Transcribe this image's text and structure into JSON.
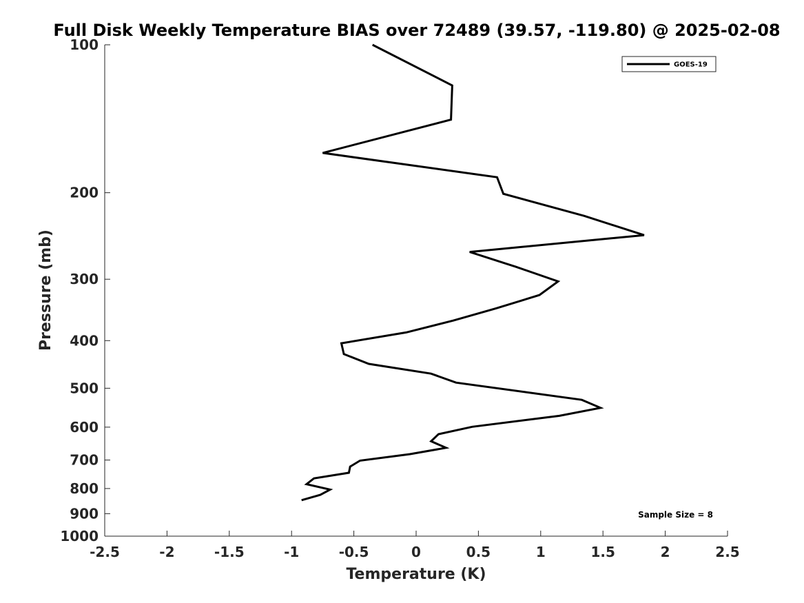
{
  "chart_data": {
    "type": "line",
    "title": "Full Disk Weekly Temperature BIAS over 72489 (39.57, -119.80) @ 2025-02-08",
    "xlabel": "Temperature (K)",
    "ylabel": "Pressure (mb)",
    "xlim": [
      -2.5,
      2.5
    ],
    "ylim": [
      100,
      1000
    ],
    "yscale": "log",
    "y_reversed": true,
    "xticks": [
      -2.5,
      -2,
      -1.5,
      -1,
      -0.5,
      0,
      0.5,
      1,
      1.5,
      2,
      2.5
    ],
    "xtick_labels": [
      "-2.5",
      "-2",
      "-1.5",
      "-1",
      "-0.5",
      "0",
      "0.5",
      "1",
      "1.5",
      "2",
      "2.5"
    ],
    "yticks": [
      100,
      200,
      300,
      400,
      500,
      600,
      700,
      800,
      900,
      1000
    ],
    "ytick_labels": [
      "100",
      "200",
      "300",
      "400",
      "500",
      "600",
      "700",
      "800",
      "900",
      "1000"
    ],
    "grid": false,
    "legend_position": "top-right",
    "series": [
      {
        "name": "GOES-19",
        "color": "#000000",
        "points": [
          {
            "x": -0.35,
            "y": 100
          },
          {
            "x": 0.29,
            "y": 121
          },
          {
            "x": 0.28,
            "y": 142
          },
          {
            "x": -0.75,
            "y": 166
          },
          {
            "x": 0.65,
            "y": 186
          },
          {
            "x": 0.7,
            "y": 201
          },
          {
            "x": 1.35,
            "y": 223
          },
          {
            "x": 1.83,
            "y": 244
          },
          {
            "x": 0.43,
            "y": 264
          },
          {
            "x": 0.8,
            "y": 283
          },
          {
            "x": 1.14,
            "y": 303
          },
          {
            "x": 0.99,
            "y": 323
          },
          {
            "x": 0.64,
            "y": 344
          },
          {
            "x": 0.3,
            "y": 364
          },
          {
            "x": -0.08,
            "y": 385
          },
          {
            "x": -0.6,
            "y": 405
          },
          {
            "x": -0.58,
            "y": 426
          },
          {
            "x": -0.38,
            "y": 446
          },
          {
            "x": 0.12,
            "y": 467
          },
          {
            "x": 0.32,
            "y": 487
          },
          {
            "x": 1.33,
            "y": 528
          },
          {
            "x": 1.48,
            "y": 548
          },
          {
            "x": 1.15,
            "y": 569
          },
          {
            "x": 0.45,
            "y": 599
          },
          {
            "x": 0.18,
            "y": 620
          },
          {
            "x": 0.12,
            "y": 641
          },
          {
            "x": 0.24,
            "y": 661
          },
          {
            "x": -0.05,
            "y": 681
          },
          {
            "x": -0.45,
            "y": 702
          },
          {
            "x": -0.53,
            "y": 722
          },
          {
            "x": -0.54,
            "y": 743
          },
          {
            "x": -0.82,
            "y": 763
          },
          {
            "x": -0.88,
            "y": 784
          },
          {
            "x": -0.69,
            "y": 804
          },
          {
            "x": -0.77,
            "y": 824
          },
          {
            "x": -0.92,
            "y": 845
          }
        ]
      }
    ],
    "annotations": [
      {
        "text": "Sample Size = 8",
        "position": "bottom-right"
      }
    ]
  }
}
